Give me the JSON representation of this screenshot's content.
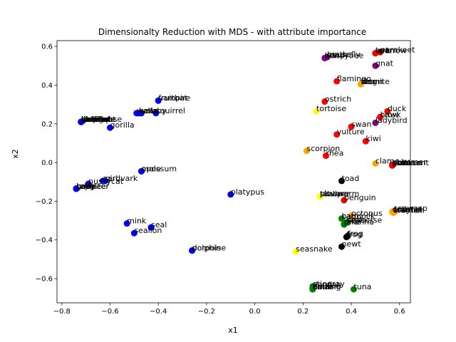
{
  "chart_data": {
    "type": "scatter",
    "title": "Dimensionalty Reduction with MDS - with attribute importance",
    "xlabel": "x1",
    "ylabel": "x2",
    "xlim": [
      -0.82,
      0.645
    ],
    "ylim": [
      -0.725,
      0.63
    ],
    "xticks": [
      -0.8,
      -0.6,
      -0.4,
      -0.2,
      0.0,
      0.2,
      0.4,
      0.6
    ],
    "yticks": [
      -0.6,
      -0.4,
      -0.2,
      0.0,
      0.2,
      0.4,
      0.6
    ],
    "xtick_labels": [
      "−0.8",
      "−0.6",
      "−0.4",
      "−0.2",
      "0.0",
      "0.2",
      "0.4",
      "0.6"
    ],
    "ytick_labels": [
      "−0.6",
      "−0.4",
      "−0.2",
      "0.0",
      "0.2",
      "0.4",
      "0.6"
    ],
    "grid": false,
    "colors": {
      "blue": "#0000ff",
      "red": "#ff0000",
      "purple": "#800080",
      "orange": "#ffa500",
      "yellow": "#ffff00",
      "black": "#000000",
      "green": "#008000"
    },
    "points": [
      {
        "label": "aardvark",
        "x": -0.63,
        "y": -0.095,
        "color": "blue"
      },
      {
        "label": "antelope",
        "x": -0.72,
        "y": 0.21,
        "color": "blue"
      },
      {
        "label": "bass",
        "x": 0.24,
        "y": -0.655,
        "color": "green"
      },
      {
        "label": "bear",
        "x": -0.48,
        "y": 0.255,
        "color": "blue"
      },
      {
        "label": "boar",
        "x": -0.72,
        "y": 0.21,
        "color": "blue"
      },
      {
        "label": "buffalo",
        "x": -0.72,
        "y": 0.21,
        "color": "blue"
      },
      {
        "label": "calf",
        "x": -0.74,
        "y": -0.135,
        "color": "blue"
      },
      {
        "label": "carp",
        "x": 0.36,
        "y": -0.29,
        "color": "green"
      },
      {
        "label": "catfish",
        "x": 0.24,
        "y": -0.655,
        "color": "green"
      },
      {
        "label": "cavy",
        "x": -0.74,
        "y": -0.135,
        "color": "blue"
      },
      {
        "label": "cheetah",
        "x": -0.72,
        "y": 0.21,
        "color": "blue"
      },
      {
        "label": "chicken",
        "x": 0.57,
        "y": -0.015,
        "color": "red"
      },
      {
        "label": "chub",
        "x": 0.24,
        "y": -0.655,
        "color": "green"
      },
      {
        "label": "clam",
        "x": 0.5,
        "y": -0.005,
        "color": "orange"
      },
      {
        "label": "crab",
        "x": 0.57,
        "y": -0.255,
        "color": "orange"
      },
      {
        "label": "crayfish",
        "x": 0.575,
        "y": -0.26,
        "color": "orange"
      },
      {
        "label": "crow",
        "x": 0.52,
        "y": 0.235,
        "color": "red"
      },
      {
        "label": "deer",
        "x": -0.72,
        "y": 0.21,
        "color": "blue"
      },
      {
        "label": "dogfish",
        "x": 0.24,
        "y": -0.645,
        "color": "green"
      },
      {
        "label": "dolphin",
        "x": -0.26,
        "y": -0.455,
        "color": "blue"
      },
      {
        "label": "dove",
        "x": 0.57,
        "y": -0.015,
        "color": "red"
      },
      {
        "label": "duck",
        "x": 0.55,
        "y": 0.265,
        "color": "red"
      },
      {
        "label": "elephant",
        "x": -0.72,
        "y": 0.21,
        "color": "blue"
      },
      {
        "label": "flamingo",
        "x": 0.34,
        "y": 0.42,
        "color": "red"
      },
      {
        "label": "flea",
        "x": 0.44,
        "y": 0.405,
        "color": "orange"
      },
      {
        "label": "frog",
        "x": 0.38,
        "y": -0.385,
        "color": "black"
      },
      {
        "label": "frog",
        "x": 0.385,
        "y": -0.38,
        "color": "black"
      },
      {
        "label": "fruitbat",
        "x": -0.4,
        "y": 0.32,
        "color": "blue"
      },
      {
        "label": "giraffe",
        "x": -0.72,
        "y": 0.21,
        "color": "blue"
      },
      {
        "label": "girl",
        "x": -0.62,
        "y": -0.095,
        "color": "blue"
      },
      {
        "label": "gnat",
        "x": 0.5,
        "y": 0.5,
        "color": "purple"
      },
      {
        "label": "goat",
        "x": -0.74,
        "y": -0.135,
        "color": "blue"
      },
      {
        "label": "gorilla",
        "x": -0.6,
        "y": 0.18,
        "color": "blue"
      },
      {
        "label": "gull",
        "x": 0.57,
        "y": -0.015,
        "color": "red"
      },
      {
        "label": "haddock",
        "x": 0.36,
        "y": -0.29,
        "color": "green"
      },
      {
        "label": "hamster",
        "x": -0.74,
        "y": -0.135,
        "color": "blue"
      },
      {
        "label": "hare",
        "x": -0.74,
        "y": -0.135,
        "color": "blue"
      },
      {
        "label": "hawk",
        "x": 0.52,
        "y": 0.235,
        "color": "red"
      },
      {
        "label": "herring",
        "x": 0.24,
        "y": -0.655,
        "color": "green"
      },
      {
        "label": "honeybee",
        "x": 0.29,
        "y": 0.54,
        "color": "purple"
      },
      {
        "label": "housefly",
        "x": 0.3,
        "y": 0.545,
        "color": "purple"
      },
      {
        "label": "kiwi",
        "x": 0.46,
        "y": 0.11,
        "color": "red"
      },
      {
        "label": "ladybird",
        "x": 0.5,
        "y": 0.205,
        "color": "purple"
      },
      {
        "label": "lark",
        "x": 0.5,
        "y": 0.565,
        "color": "red"
      },
      {
        "label": "leopard",
        "x": -0.72,
        "y": 0.21,
        "color": "blue"
      },
      {
        "label": "lion",
        "x": -0.72,
        "y": 0.21,
        "color": "blue"
      },
      {
        "label": "lobster",
        "x": 0.58,
        "y": -0.255,
        "color": "orange"
      },
      {
        "label": "lynx",
        "x": -0.72,
        "y": 0.21,
        "color": "blue"
      },
      {
        "label": "mink",
        "x": -0.53,
        "y": -0.315,
        "color": "blue"
      },
      {
        "label": "mole",
        "x": -0.47,
        "y": -0.045,
        "color": "blue"
      },
      {
        "label": "mongoose",
        "x": -0.72,
        "y": 0.21,
        "color": "blue"
      },
      {
        "label": "moth",
        "x": 0.3,
        "y": 0.545,
        "color": "purple"
      },
      {
        "label": "newt",
        "x": 0.36,
        "y": -0.435,
        "color": "black"
      },
      {
        "label": "octopus",
        "x": 0.4,
        "y": -0.275,
        "color": "orange"
      },
      {
        "label": "opossum",
        "x": -0.47,
        "y": -0.045,
        "color": "blue"
      },
      {
        "label": "oryx",
        "x": -0.74,
        "y": -0.135,
        "color": "blue"
      },
      {
        "label": "ostrich",
        "x": 0.29,
        "y": 0.315,
        "color": "red"
      },
      {
        "label": "parakeet",
        "x": 0.52,
        "y": 0.57,
        "color": "red"
      },
      {
        "label": "penguin",
        "x": 0.37,
        "y": -0.195,
        "color": "red"
      },
      {
        "label": "pheasant",
        "x": 0.57,
        "y": -0.015,
        "color": "red"
      },
      {
        "label": "pike",
        "x": 0.37,
        "y": -0.32,
        "color": "green"
      },
      {
        "label": "piranha",
        "x": 0.37,
        "y": -0.32,
        "color": "green"
      },
      {
        "label": "pitviper",
        "x": 0.27,
        "y": -0.175,
        "color": "yellow"
      },
      {
        "label": "platypus",
        "x": -0.1,
        "y": -0.165,
        "color": "blue"
      },
      {
        "label": "polecat",
        "x": -0.72,
        "y": 0.21,
        "color": "blue"
      },
      {
        "label": "pony",
        "x": -0.74,
        "y": -0.135,
        "color": "blue"
      },
      {
        "label": "porpoise",
        "x": -0.26,
        "y": -0.455,
        "color": "blue"
      },
      {
        "label": "puma",
        "x": -0.72,
        "y": 0.21,
        "color": "blue"
      },
      {
        "label": "pussycat",
        "x": -0.69,
        "y": -0.11,
        "color": "blue"
      },
      {
        "label": "raccoon",
        "x": -0.72,
        "y": 0.21,
        "color": "blue"
      },
      {
        "label": "reindeer",
        "x": -0.74,
        "y": -0.135,
        "color": "blue"
      },
      {
        "label": "rhea",
        "x": 0.295,
        "y": 0.035,
        "color": "red"
      },
      {
        "label": "scorpion",
        "x": 0.215,
        "y": 0.06,
        "color": "orange"
      },
      {
        "label": "seahorse",
        "x": 0.38,
        "y": -0.31,
        "color": "green"
      },
      {
        "label": "seal",
        "x": -0.43,
        "y": -0.335,
        "color": "blue"
      },
      {
        "label": "sealion",
        "x": -0.5,
        "y": -0.365,
        "color": "blue"
      },
      {
        "label": "seasnake",
        "x": 0.17,
        "y": -0.46,
        "color": "yellow"
      },
      {
        "label": "seawasp",
        "x": 0.575,
        "y": -0.25,
        "color": "orange"
      },
      {
        "label": "skimmer",
        "x": 0.57,
        "y": -0.01,
        "color": "red"
      },
      {
        "label": "skua",
        "x": 0.57,
        "y": -0.015,
        "color": "red"
      },
      {
        "label": "slowworm",
        "x": 0.27,
        "y": -0.175,
        "color": "yellow"
      },
      {
        "label": "slug",
        "x": 0.44,
        "y": 0.405,
        "color": "orange"
      },
      {
        "label": "sole",
        "x": 0.385,
        "y": -0.31,
        "color": "green"
      },
      {
        "label": "sparrow",
        "x": 0.5,
        "y": 0.565,
        "color": "red"
      },
      {
        "label": "squirrel",
        "x": -0.41,
        "y": 0.255,
        "color": "blue"
      },
      {
        "label": "starfish",
        "x": 0.575,
        "y": -0.26,
        "color": "orange"
      },
      {
        "label": "stingray",
        "x": 0.24,
        "y": -0.64,
        "color": "green"
      },
      {
        "label": "swan",
        "x": 0.4,
        "y": 0.185,
        "color": "red"
      },
      {
        "label": "termite",
        "x": 0.44,
        "y": 0.405,
        "color": "orange"
      },
      {
        "label": "toad",
        "x": 0.36,
        "y": -0.095,
        "color": "black"
      },
      {
        "label": "tortoise",
        "x": 0.255,
        "y": 0.265,
        "color": "yellow"
      },
      {
        "label": "tuatara",
        "x": 0.27,
        "y": -0.175,
        "color": "yellow"
      },
      {
        "label": "tuna",
        "x": 0.41,
        "y": -0.655,
        "color": "green"
      },
      {
        "label": "vampire",
        "x": -0.4,
        "y": 0.32,
        "color": "blue"
      },
      {
        "label": "vole",
        "x": -0.47,
        "y": 0.255,
        "color": "blue"
      },
      {
        "label": "vulture",
        "x": 0.34,
        "y": 0.145,
        "color": "red"
      },
      {
        "label": "wallaby",
        "x": -0.49,
        "y": 0.255,
        "color": "blue"
      },
      {
        "label": "wasp",
        "x": 0.29,
        "y": 0.54,
        "color": "purple"
      },
      {
        "label": "wolf",
        "x": -0.72,
        "y": 0.21,
        "color": "blue"
      },
      {
        "label": "worm",
        "x": 0.44,
        "y": 0.405,
        "color": "orange"
      },
      {
        "label": "wren",
        "x": 0.5,
        "y": 0.565,
        "color": "red"
      }
    ]
  }
}
